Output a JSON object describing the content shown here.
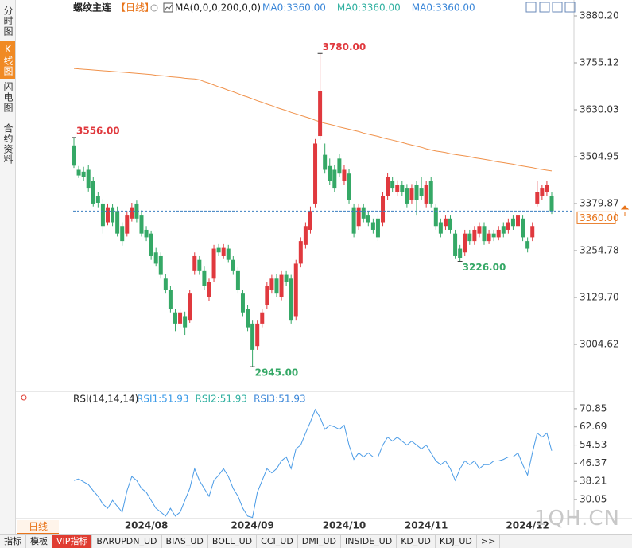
{
  "sidebar_tabs": [
    "分时图",
    "K线图",
    "闪电图",
    "合约资料"
  ],
  "chart_data": [
    {
      "type": "candlestick",
      "title": "螺纹主连",
      "subtitle": "【日线】",
      "indicator": "MA(0,0,0,200,0,0)",
      "ma_labels": [
        {
          "text": "MA0:3360.00",
          "color": "#3a86d8"
        },
        {
          "text": "MA0:3360.00",
          "color": "#2fb0a0"
        },
        {
          "text": "MA0:3360.00",
          "color": "#3a86d8"
        }
      ],
      "up_color": "#e0393e",
      "down_color": "#35a866",
      "ylim": [
        2883.8,
        3880.2
      ],
      "yticks": [
        {
          "value": 3880.2,
          "label": "3880.20"
        },
        3755.12,
        3630.03,
        3504.95,
        3379.87,
        3254.78,
        {
          "value": 3129.7,
          "label": "3129.70"
        },
        3004.62
      ],
      "last": {
        "value": 3360,
        "label": "3360.00",
        "color": "#e8741a"
      },
      "categories": [
        null,
        null,
        null,
        null,
        null,
        null,
        null,
        null,
        null,
        null,
        null,
        null,
        null,
        null,
        null,
        "2024/08",
        null,
        null,
        null,
        null,
        null,
        null,
        null,
        null,
        null,
        null,
        null,
        null,
        null,
        null,
        null,
        null,
        null,
        null,
        null,
        null,
        null,
        "2024/09",
        null,
        null,
        null,
        null,
        null,
        null,
        null,
        null,
        null,
        null,
        null,
        null,
        null,
        null,
        null,
        null,
        null,
        null,
        "2024/10",
        null,
        null,
        null,
        null,
        null,
        null,
        null,
        null,
        null,
        null,
        null,
        null,
        null,
        null,
        null,
        null,
        "2024/11",
        null,
        null,
        null,
        null,
        null,
        null,
        null,
        null,
        null,
        null,
        null,
        null,
        null,
        null,
        null,
        null,
        null,
        null,
        null,
        null,
        "2024/12",
        null,
        null,
        null,
        null,
        null
      ],
      "open": [
        3535,
        3470,
        3465,
        3470,
        3440,
        3400,
        3380,
        3330,
        3370,
        3360,
        3320,
        3300,
        3340,
        3380,
        3350,
        3310,
        3300,
        3250,
        3240,
        3180,
        3150,
        3090,
        3060,
        3080,
        3070,
        3200,
        3230,
        3200,
        3130,
        3180,
        3262,
        3240,
        3260,
        3230,
        3200,
        3140,
        3100,
        3060,
        3000,
        3060,
        3110,
        3150,
        3180,
        3130,
        3190,
        3180,
        3080,
        3220,
        3270,
        3310,
        3380,
        3560,
        3510,
        3480,
        3470,
        3500,
        3440,
        3460,
        3370,
        3320,
        3370,
        3350,
        3330,
        3340,
        3330,
        3400,
        3440,
        3410,
        3430,
        3420,
        3390,
        3430,
        3420,
        3380,
        3440,
        3370,
        3330,
        3320,
        3340,
        3300,
        3260,
        3250,
        3300,
        3280,
        3300,
        3320,
        3280,
        3300,
        3290,
        3320,
        3310,
        3340,
        3320,
        3340,
        3280,
        3290,
        3380,
        3400,
        3410,
        3400
      ],
      "high": [
        3556,
        3480,
        3478,
        3482,
        3450,
        3410,
        3392,
        3380,
        3378,
        3372,
        3330,
        3360,
        3382,
        3388,
        3362,
        3320,
        3308,
        3262,
        3250,
        3192,
        3160,
        3100,
        3100,
        3092,
        3150,
        3250,
        3240,
        3212,
        3180,
        3270,
        3272,
        3272,
        3270,
        3240,
        3210,
        3150,
        3110,
        3070,
        3070,
        3100,
        3170,
        3190,
        3192,
        3200,
        3200,
        3190,
        3230,
        3290,
        3330,
        3372,
        3552,
        3780,
        3540,
        3500,
        3482,
        3512,
        3482,
        3472,
        3380,
        3380,
        3380,
        3360,
        3340,
        3350,
        3410,
        3462,
        3452,
        3442,
        3440,
        3432,
        3432,
        3440,
        3450,
        3440,
        3450,
        3380,
        3340,
        3350,
        3350,
        3310,
        3270,
        3310,
        3310,
        3320,
        3330,
        3330,
        3310,
        3310,
        3320,
        3330,
        3340,
        3350,
        3360,
        3350,
        3290,
        3330,
        3440,
        3430,
        3440,
        3410
      ],
      "low": [
        3475,
        3448,
        3440,
        3412,
        3372,
        3370,
        3300,
        3322,
        3320,
        3292,
        3268,
        3292,
        3332,
        3330,
        3292,
        3280,
        3230,
        3212,
        3180,
        3140,
        3090,
        3040,
        3050,
        3030,
        3062,
        3190,
        3190,
        3150,
        3120,
        3172,
        3240,
        3232,
        3222,
        3190,
        3140,
        3080,
        3040,
        2945,
        2990,
        3050,
        3100,
        3140,
        3130,
        3122,
        3160,
        3060,
        3070,
        3210,
        3260,
        3300,
        3370,
        3550,
        3460,
        3430,
        3410,
        3450,
        3430,
        3380,
        3290,
        3310,
        3330,
        3320,
        3300,
        3280,
        3320,
        3390,
        3410,
        3400,
        3400,
        3370,
        3380,
        3350,
        3390,
        3370,
        3370,
        3310,
        3290,
        3310,
        3300,
        3232,
        3226,
        3240,
        3270,
        3270,
        3290,
        3270,
        3272,
        3280,
        3282,
        3290,
        3300,
        3310,
        3310,
        3280,
        3250,
        3280,
        3372,
        3390,
        3400,
        3352
      ],
      "close": [
        3481,
        3455,
        3450,
        3420,
        3380,
        3382,
        3320,
        3370,
        3330,
        3300,
        3280,
        3350,
        3370,
        3340,
        3300,
        3290,
        3240,
        3220,
        3190,
        3150,
        3100,
        3060,
        3090,
        3050,
        3140,
        3240,
        3200,
        3160,
        3170,
        3260,
        3250,
        3262,
        3230,
        3200,
        3150,
        3090,
        3050,
        2990,
        3060,
        3090,
        3160,
        3180,
        3140,
        3190,
        3170,
        3070,
        3220,
        3280,
        3320,
        3360,
        3540,
        3680,
        3470,
        3440,
        3420,
        3460,
        3470,
        3390,
        3300,
        3370,
        3340,
        3330,
        3310,
        3290,
        3400,
        3450,
        3420,
        3430,
        3410,
        3380,
        3420,
        3390,
        3400,
        3430,
        3380,
        3320,
        3300,
        3340,
        3310,
        3240,
        3235,
        3300,
        3280,
        3310,
        3320,
        3280,
        3300,
        3290,
        3310,
        3300,
        3330,
        3320,
        3350,
        3290,
        3260,
        3320,
        3410,
        3420,
        3430,
        3360
      ],
      "high_labels": [
        "3556.00",
        null,
        null,
        null,
        null,
        null,
        null,
        null,
        null,
        null,
        null,
        null,
        null,
        null,
        null,
        null,
        null,
        null,
        null,
        null,
        null,
        null,
        null,
        null,
        null,
        null,
        null,
        null,
        null,
        null,
        null,
        null,
        null,
        null,
        null,
        null,
        null,
        null,
        null,
        null,
        null,
        null,
        null,
        null,
        null,
        null,
        null,
        null,
        null,
        null,
        null,
        "3780.00",
        null,
        null,
        null,
        null,
        null,
        null,
        null,
        null,
        null,
        null,
        null,
        null,
        null,
        null,
        null,
        null,
        null,
        null,
        null,
        null,
        null,
        null,
        null,
        null,
        null,
        null,
        null,
        null,
        null,
        null,
        null,
        null,
        null,
        null,
        null,
        null,
        null,
        null,
        null,
        null,
        null,
        null,
        null,
        null,
        null,
        null,
        null,
        null
      ],
      "low_labels": [
        null,
        null,
        null,
        null,
        null,
        null,
        null,
        null,
        null,
        null,
        null,
        null,
        null,
        null,
        null,
        null,
        null,
        null,
        null,
        null,
        null,
        null,
        null,
        null,
        null,
        null,
        null,
        null,
        null,
        null,
        null,
        null,
        null,
        null,
        null,
        null,
        null,
        "2945.00",
        null,
        null,
        null,
        null,
        null,
        null,
        null,
        null,
        null,
        null,
        null,
        null,
        null,
        null,
        null,
        null,
        null,
        null,
        null,
        null,
        null,
        null,
        null,
        null,
        null,
        null,
        null,
        null,
        null,
        null,
        null,
        null,
        null,
        null,
        null,
        null,
        null,
        null,
        null,
        null,
        null,
        null,
        "3226.00",
        null,
        null,
        null,
        null,
        null,
        null,
        null,
        null,
        null,
        null,
        null,
        null,
        null,
        null,
        null,
        null,
        null,
        null,
        null
      ],
      "ma_line": {
        "color": "#f0914a",
        "values": [
          3740,
          3739,
          3738,
          3737,
          3736,
          3735,
          3734,
          3733,
          3732,
          3731,
          3730,
          3729,
          3728,
          3727,
          3726,
          3725,
          3724,
          3722,
          3721,
          3720,
          3718,
          3717,
          3716,
          3714,
          3713,
          3712,
          3710,
          3705,
          3701,
          3696,
          3691,
          3687,
          3682,
          3678,
          3673,
          3668,
          3664,
          3659,
          3654,
          3650,
          3645,
          3641,
          3636,
          3632,
          3628,
          3623,
          3619,
          3615,
          3611,
          3607,
          3602,
          3598,
          3594,
          3591,
          3588,
          3584,
          3581,
          3578,
          3575,
          3572,
          3568,
          3565,
          3562,
          3559,
          3555,
          3552,
          3549,
          3546,
          3543,
          3539,
          3536,
          3533,
          3530,
          3526,
          3523,
          3520,
          3518,
          3516,
          3513,
          3511,
          3509,
          3507,
          3505,
          3502,
          3500,
          3498,
          3496,
          3493,
          3491,
          3489,
          3487,
          3485,
          3482,
          3480,
          3478,
          3476,
          3473,
          3471,
          3469,
          3467
        ]
      }
    },
    {
      "type": "line",
      "title": "RSI(14,14,14)",
      "legend": [
        {
          "text": "RSI1:51.93",
          "color": "#3a9ae8"
        },
        {
          "text": "RSI2:51.93",
          "color": "#2fb0a0"
        },
        {
          "text": "RSI3:51.93",
          "color": "#3a86d8"
        }
      ],
      "ylim": [
        21.5,
        77.6
      ],
      "yticks": [
        70.85,
        62.69,
        54.53,
        46.37,
        38.21,
        30.05
      ],
      "series": [
        {
          "color": "#4a9be6",
          "values": [
            38.6,
            39.3,
            38.0,
            36.8,
            34.0,
            31.5,
            28.0,
            26.1,
            29.7,
            27.0,
            24.4,
            34.0,
            40.4,
            38.6,
            35.0,
            33.3,
            29.7,
            26.1,
            24.4,
            22.6,
            26.1,
            22.6,
            24.4,
            29.7,
            35.0,
            43.9,
            38.6,
            35.0,
            31.5,
            38.6,
            41.0,
            43.9,
            40.4,
            35.0,
            31.5,
            26.1,
            22.6,
            22.0,
            33.3,
            38.6,
            43.9,
            42.0,
            43.9,
            47.4,
            49.2,
            43.9,
            52.8,
            54.5,
            59.9,
            65.0,
            70.5,
            67.0,
            61.6,
            63.4,
            62.7,
            61.6,
            63.4,
            54.5,
            48.1,
            51.0,
            49.2,
            51.0,
            49.2,
            49.2,
            54.5,
            58.1,
            56.3,
            58.1,
            56.3,
            54.5,
            56.3,
            54.5,
            52.8,
            54.5,
            51.0,
            47.4,
            45.7,
            47.4,
            43.9,
            38.6,
            43.9,
            47.4,
            45.7,
            47.4,
            43.9,
            45.7,
            45.7,
            47.4,
            47.4,
            48.1,
            49.2,
            49.2,
            51.0,
            45.7,
            41.0,
            51.0,
            59.9,
            58.1,
            59.9,
            51.93
          ]
        }
      ]
    }
  ],
  "footer": {
    "period_badge": "日线",
    "watermark": "1QH.CN",
    "tabs": [
      "指标",
      "模板",
      "VIP指标",
      "BARUPDN_UD",
      "BIAS_UD",
      "BOLL_UD",
      "CCI_UD",
      "DMI_UD",
      "INSIDE_UD",
      "KD_UD",
      "KDJ_UD",
      ">>"
    ]
  }
}
